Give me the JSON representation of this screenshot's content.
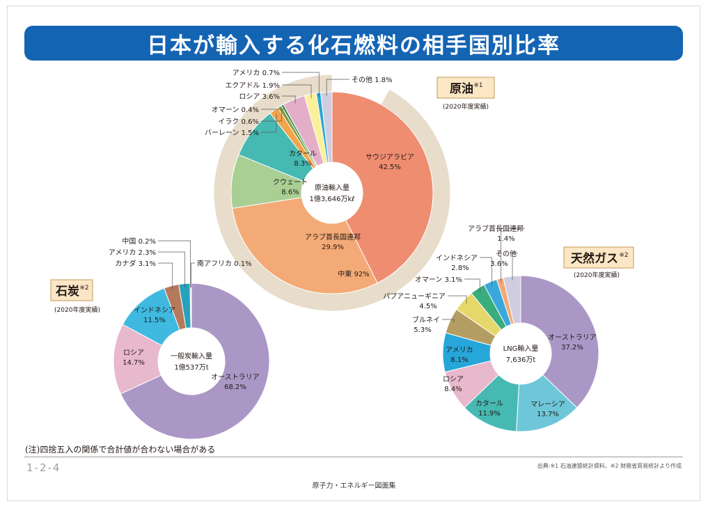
{
  "title": "日本が輸入する化石燃料の相手国別比率",
  "note": "(注)四捨五入の関係で合計値が合わない場合がある",
  "page_number": "1-2-4",
  "source": "出典:※1 石油連盟統計資料、※2 財務省貿易統計より作成",
  "footer": "原子力・エネルギー図面集",
  "chart_data": [
    {
      "type": "pie",
      "id": "oil",
      "title": "原油",
      "title_mark": "※1",
      "subtitle": "(2020年度実績)",
      "center_label": [
        "原油輸入量",
        "1億3,646万kℓ"
      ],
      "unit": "%",
      "slices": [
        {
          "label": "サウジアラビア",
          "value": 42.5,
          "color": "#ef8d71"
        },
        {
          "label": "アラブ首長国連邦",
          "value": 29.9,
          "color": "#f4aa76"
        },
        {
          "label": "クウェート",
          "value": 8.6,
          "color": "#a9cf94"
        },
        {
          "label": "カタール",
          "value": 8.3,
          "color": "#46b9b3"
        },
        {
          "label": "バーレーン",
          "value": 1.5,
          "color": "#f2a44a"
        },
        {
          "label": "イラク",
          "value": 0.6,
          "color": "#8e9a3c"
        },
        {
          "label": "オマーン",
          "value": 0.4,
          "color": "#2f8f55"
        },
        {
          "label": "ロシア",
          "value": 3.6,
          "color": "#e3afc8"
        },
        {
          "label": "エクアドル",
          "value": 1.9,
          "color": "#fbf09a"
        },
        {
          "label": "アメリカ",
          "value": 0.7,
          "color": "#27a6d9"
        },
        {
          "label": "その他",
          "value": 1.8,
          "color": "#d1cde0"
        }
      ],
      "outer_ring": {
        "label": "中東",
        "value": 92,
        "color": "#e8dccb"
      }
    },
    {
      "type": "pie",
      "id": "coal",
      "title": "石炭",
      "title_mark": "※2",
      "subtitle": "(2020年度実績)",
      "center_label": [
        "一般炭輸入量",
        "1億537万t"
      ],
      "unit": "%",
      "slices": [
        {
          "label": "オーストラリア",
          "value": 68.2,
          "color": "#ab97c6"
        },
        {
          "label": "ロシア",
          "value": 14.7,
          "color": "#e8b8cc"
        },
        {
          "label": "インドネシア",
          "value": 11.5,
          "color": "#3fb9e0"
        },
        {
          "label": "カナダ",
          "value": 3.1,
          "color": "#b57a5c"
        },
        {
          "label": "アメリカ",
          "value": 2.3,
          "color": "#26a2bc"
        },
        {
          "label": "中国",
          "value": 0.2,
          "color": "#6d6d6d"
        },
        {
          "label": "南アフリカ",
          "value": 0.1,
          "color": "#8b5a8c"
        }
      ]
    },
    {
      "type": "pie",
      "id": "lng",
      "title": "天然ガス",
      "title_mark": "※2",
      "subtitle": "(2020年度実績)",
      "center_label": [
        "LNG輸入量",
        "7,636万t"
      ],
      "unit": "%",
      "slices": [
        {
          "label": "オーストラリア",
          "value": 37.2,
          "color": "#ab97c6"
        },
        {
          "label": "マレーシア",
          "value": 13.7,
          "color": "#6ec7d9"
        },
        {
          "label": "カタール",
          "value": 11.9,
          "color": "#46b9b3"
        },
        {
          "label": "ロシア",
          "value": 8.4,
          "color": "#e8b8cc"
        },
        {
          "label": "アメリカ",
          "value": 8.1,
          "color": "#27a6d9"
        },
        {
          "label": "ブルネイ",
          "value": 5.3,
          "color": "#b49d63"
        },
        {
          "label": "パプアニューギニア",
          "value": 4.5,
          "color": "#e6d76a"
        },
        {
          "label": "オマーン",
          "value": 3.1,
          "color": "#39ad7d"
        },
        {
          "label": "インドネシア",
          "value": 2.8,
          "color": "#3aa8dc"
        },
        {
          "label": "アラブ首長国連邦",
          "value": 1.4,
          "color": "#f4aa76"
        },
        {
          "label": "その他",
          "value": 3.6,
          "color": "#d1cde0"
        }
      ]
    }
  ]
}
